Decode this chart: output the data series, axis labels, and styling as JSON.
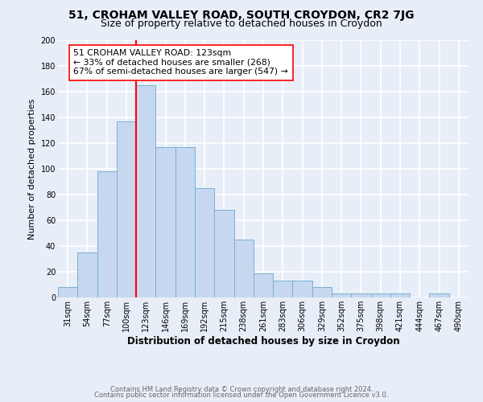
{
  "title": "51, CROHAM VALLEY ROAD, SOUTH CROYDON, CR2 7JG",
  "subtitle": "Size of property relative to detached houses in Croydon",
  "xlabel": "Distribution of detached houses by size in Croydon",
  "ylabel": "Number of detached properties",
  "footnote1": "Contains HM Land Registry data © Crown copyright and database right 2024.",
  "footnote2": "Contains public sector information licensed under the Open Government Licence v3.0.",
  "bin_labels": [
    "31sqm",
    "54sqm",
    "77sqm",
    "100sqm",
    "123sqm",
    "146sqm",
    "169sqm",
    "192sqm",
    "215sqm",
    "238sqm",
    "261sqm",
    "283sqm",
    "306sqm",
    "329sqm",
    "352sqm",
    "375sqm",
    "398sqm",
    "421sqm",
    "444sqm",
    "467sqm",
    "490sqm"
  ],
  "bar_heights": [
    8,
    35,
    98,
    137,
    165,
    117,
    117,
    85,
    68,
    45,
    19,
    13,
    13,
    8,
    3,
    3,
    3,
    3,
    0,
    3,
    0
  ],
  "bar_color": "#c5d8f0",
  "bar_edge_color": "#7aafd4",
  "property_line_index": 4,
  "property_line_color": "red",
  "annotation_text": "51 CROHAM VALLEY ROAD: 123sqm\n← 33% of detached houses are smaller (268)\n67% of semi-detached houses are larger (547) →",
  "annotation_box_color": "white",
  "annotation_box_edge_color": "red",
  "ylim": [
    0,
    200
  ],
  "yticks": [
    0,
    20,
    40,
    60,
    80,
    100,
    120,
    140,
    160,
    180,
    200
  ],
  "background_color": "#e8eef8",
  "plot_bg_color": "#e8eef8",
  "grid_color": "white",
  "title_fontsize": 10,
  "subtitle_fontsize": 9,
  "annotation_fontsize": 7.8,
  "axis_label_fontsize": 8.5,
  "ylabel_fontsize": 8,
  "tick_fontsize": 7,
  "footnote_fontsize": 6,
  "footnote_color": "#666666"
}
